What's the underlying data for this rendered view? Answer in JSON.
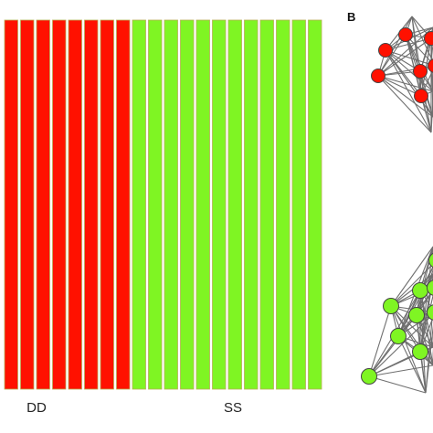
{
  "panel_b_label": "B",
  "colors": {
    "DD": "#ff1100",
    "SS": "#7ff523",
    "edge": "#6f6f6f",
    "node_stroke": "#444444",
    "bar_border": "#b8b055"
  },
  "chart_data": [
    {
      "type": "bar",
      "title": "",
      "groups": [
        {
          "name": "DD",
          "count": 8,
          "color": "#ff1100"
        },
        {
          "name": "SS",
          "count": 12,
          "color": "#7ff523"
        }
      ],
      "categories": [
        "DD",
        "DD",
        "DD",
        "DD",
        "DD",
        "DD",
        "DD",
        "DD",
        "SS",
        "SS",
        "SS",
        "SS",
        "SS",
        "SS",
        "SS",
        "SS",
        "SS",
        "SS",
        "SS",
        "SS"
      ],
      "values": [
        1,
        1,
        1,
        1,
        1,
        1,
        1,
        1,
        1,
        1,
        1,
        1,
        1,
        1,
        1,
        1,
        1,
        1,
        1,
        1
      ],
      "ylim": [
        0,
        1
      ],
      "grid": false,
      "legend": "none"
    },
    {
      "type": "network",
      "clusters": [
        {
          "name": "red",
          "color": "#ff1100",
          "visible_nodes": 7
        },
        {
          "name": "green",
          "color": "#7ff523",
          "visible_nodes": 9
        }
      ]
    }
  ]
}
